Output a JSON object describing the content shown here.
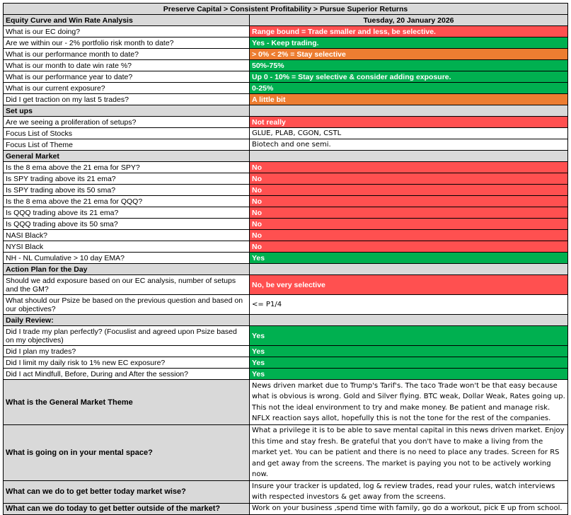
{
  "title": "Preserve Capital > Consistent Profitability > Pursue Superior Returns",
  "sections": {
    "equity": {
      "label": "Equity Curve and Win Rate Analysis",
      "date": "Tuesday, 20 January 2026"
    },
    "setups": {
      "label": "Set ups"
    },
    "market": {
      "label": "General Market"
    },
    "action": {
      "label": "Action Plan for the Day"
    },
    "review": {
      "label": "Daily Review:"
    }
  },
  "rows": {
    "ec": {
      "q": "What is our EC doing?",
      "a": "Range bound = Trade smaller and less, be selective.",
      "color": "#ff5050"
    },
    "within": {
      "q": "Are we within our - 2% portfolio risk month to date?",
      "a": "Yes - Keep trading.",
      "color": "#00b050"
    },
    "perf_month": {
      "q": "What is our performance month to date?",
      "a": "> 0% < 2% = Stay selective",
      "color": "#ed7d31"
    },
    "win_rate": {
      "q": "What is our month to date win rate %?",
      "a": "50%-75%",
      "color": "#00b050"
    },
    "perf_year": {
      "q": "What is our performance year to date?",
      "a": "Up 0 - 10% = Stay selective & consider adding exposure.",
      "color": "#00b050"
    },
    "exposure": {
      "q": "What is our current exposure?",
      "a": "0-25%",
      "color": "#00b050"
    },
    "traction": {
      "q": "Did I get traction on my last 5 trades?",
      "a": "A little bit",
      "color": "#ed7d31"
    },
    "prolif": {
      "q": "Are we seeing a proliferation of setups?",
      "a": "Not really",
      "color": "#ff5050"
    },
    "stocks": {
      "q": "Focus List of Stocks",
      "a": "GLUE, PLAB, CGON, CSTL"
    },
    "theme": {
      "q": "Focus List of Theme",
      "a": "Biotech and one semi."
    },
    "spy_ema": {
      "q": "Is the 8 ema above the 21 ema for SPY?",
      "a": "No",
      "color": "#ff5050"
    },
    "spy21": {
      "q": "Is SPY trading above its 21 ema?",
      "a": "No",
      "color": "#ff5050"
    },
    "spy50": {
      "q": "Is SPY trading above its 50 sma?",
      "a": "No",
      "color": "#ff5050"
    },
    "qqq_ema": {
      "q": "Is the 8 ema above the 21 ema for QQQ?",
      "a": "No",
      "color": "#ff5050"
    },
    "qqq21": {
      "q": "Is QQQ trading above its 21 ema?",
      "a": "No",
      "color": "#ff5050"
    },
    "qqq50": {
      "q": "Is QQQ trading above its 50 sma?",
      "a": "No",
      "color": "#ff5050"
    },
    "nasi": {
      "q": "NASI Black?",
      "a": "No",
      "color": "#ff5050"
    },
    "nysi": {
      "q": "NYSI Black",
      "a": "No",
      "color": "#ff5050"
    },
    "nhnl": {
      "q": "NH - NL Cumulative > 10 day EMA?",
      "a": "Yes",
      "color": "#00b050"
    },
    "add_exp": {
      "q": "Should we add exposure based on our EC analysis, number of setups and the GM?",
      "a": "No, be very selective",
      "color": "#ff5050"
    },
    "psize": {
      "q": "What should our Psize be based on the previous question and based on our objectives?",
      "a": "<= P1/4"
    },
    "plan_perfect": {
      "q": "Did I trade my plan perfectly? (Focuslist and agreed upon Psize based on my objectives)",
      "a": "Yes",
      "color": "#00b050"
    },
    "plan_trades": {
      "q": "Did I plan my trades?",
      "a": "Yes",
      "color": "#00b050"
    },
    "limit_risk": {
      "q": "Did I limit my daily risk to 1% new EC exposure?",
      "a": "Yes",
      "color": "#00b050"
    },
    "mindful": {
      "q": "Did I act Mindfull, Before, During and After the session?",
      "a": "Yes",
      "color": "#00b050"
    },
    "gm_theme": {
      "q": "What is the General Market Theme",
      "a": "News driven market due to Trump's Tarif's. The taco Trade won't be that easy because what is obvious is wrong. Gold and Silver flying. BTC weak, Dollar Weak, Rates going up. This not the ideal environment to try and make money. Be patient and manage risk. NFLX reaction says allot, hopefully this is not the tone for the rest of the companies."
    },
    "mental": {
      "q": "What is going on in your mental space?",
      "a": "What a privilege it is to be able to save mental capital in this news driven market. Enjoy this time and stay fresh. Be grateful that you don't have to make a living from the market yet. You can be patient and there is no need to place any trades. Screen for RS and get away from the screens. The market is paying you not to be actively working now."
    },
    "better_market": {
      "q": "What can we do to get better today market wise?",
      "a": "Insure your tracker is updated, log & review trades, read your rules, watch interviews with respected investors & get away from the screens."
    },
    "better_outside": {
      "q": "What can we do today to get better outside of the market?",
      "a": "Work on your business ,spend time with family, go do a workout, pick E up from school."
    }
  }
}
